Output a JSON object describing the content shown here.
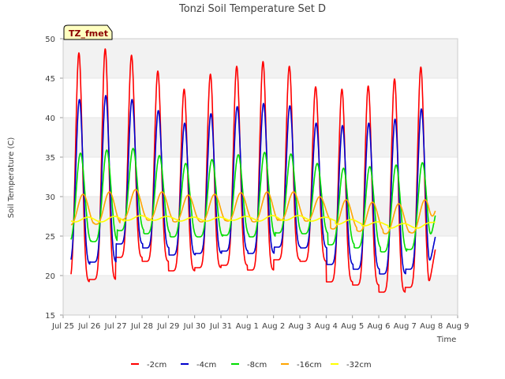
{
  "chart_data": {
    "type": "line",
    "title": "Tonzi Soil Temperature Set D",
    "xlabel": "Time",
    "ylabel": "Soil Temperature (C)",
    "ylim": [
      15,
      50
    ],
    "xlim": [
      "Jul 25",
      "Aug 9"
    ],
    "y_ticks": [
      "15",
      "20",
      "25",
      "30",
      "35",
      "40",
      "45",
      "50"
    ],
    "x_ticks": [
      "Jul 25",
      "Jul 26",
      "Jul 27",
      "Jul 28",
      "Jul 29",
      "Jul 30",
      "Jul 31",
      "Aug 1",
      "Aug 2",
      "Aug 3",
      "Aug 4",
      "Aug 5",
      "Aug 6",
      "Aug 7",
      "Aug 8",
      "Aug 9"
    ],
    "grid": "horizontal bands",
    "legend_position": "bottom",
    "badge": "TZ_fmet",
    "series": [
      {
        "name": "-2cm",
        "color": "#ff0000",
        "daily_min": [
          19.2,
          19.5,
          22.3,
          21.8,
          20.6,
          21.0,
          21.3,
          20.7,
          22.0,
          21.8,
          19.2,
          18.8,
          17.9,
          18.5
        ],
        "daily_max": [
          48.2,
          48.7,
          47.9,
          45.9,
          43.6,
          45.5,
          46.5,
          47.1,
          46.5,
          43.9,
          43.6,
          44.0,
          44.9,
          46.4
        ],
        "end_value": 23.3
      },
      {
        "name": "-4cm",
        "color": "#0000cc",
        "daily_min": [
          21.4,
          21.7,
          24.0,
          23.5,
          22.6,
          22.8,
          23.1,
          22.8,
          23.6,
          23.5,
          21.4,
          20.8,
          20.2,
          20.8
        ],
        "daily_max": [
          42.3,
          42.8,
          42.3,
          40.9,
          39.3,
          40.5,
          41.4,
          41.8,
          41.5,
          39.3,
          39.0,
          39.3,
          39.8,
          41.1
        ],
        "end_value": 24.9
      },
      {
        "name": "-8cm",
        "color": "#00dd00",
        "daily_min": [
          24.2,
          24.3,
          25.7,
          25.3,
          24.9,
          24.9,
          25.1,
          24.9,
          25.4,
          25.3,
          23.9,
          23.5,
          23.0,
          23.3
        ],
        "daily_max": [
          35.5,
          35.9,
          36.1,
          35.2,
          34.2,
          34.7,
          35.3,
          35.6,
          35.4,
          34.2,
          33.6,
          33.8,
          34.0,
          34.3
        ],
        "end_value": 27.6
      },
      {
        "name": "-16cm",
        "color": "#ffa500",
        "daily_min": [
          26.4,
          26.5,
          27.1,
          27.0,
          26.8,
          26.8,
          26.9,
          26.8,
          27.0,
          26.9,
          25.9,
          25.6,
          25.3,
          25.4
        ],
        "daily_max": [
          30.3,
          30.6,
          30.9,
          30.6,
          30.2,
          30.3,
          30.5,
          30.6,
          30.6,
          30.0,
          29.6,
          29.3,
          29.1,
          29.6
        ],
        "end_value": 28.2
      },
      {
        "name": "-32cm",
        "color": "#ffff00",
        "daily_min": [
          26.8,
          26.8,
          27.0,
          27.0,
          26.9,
          26.9,
          27.0,
          26.9,
          27.0,
          26.9,
          26.5,
          26.3,
          26.0,
          26.0
        ],
        "daily_max": [
          27.4,
          27.5,
          27.6,
          27.5,
          27.4,
          27.4,
          27.5,
          27.6,
          27.6,
          27.4,
          27.1,
          26.8,
          26.6,
          26.7
        ],
        "end_value": 26.8
      }
    ]
  }
}
